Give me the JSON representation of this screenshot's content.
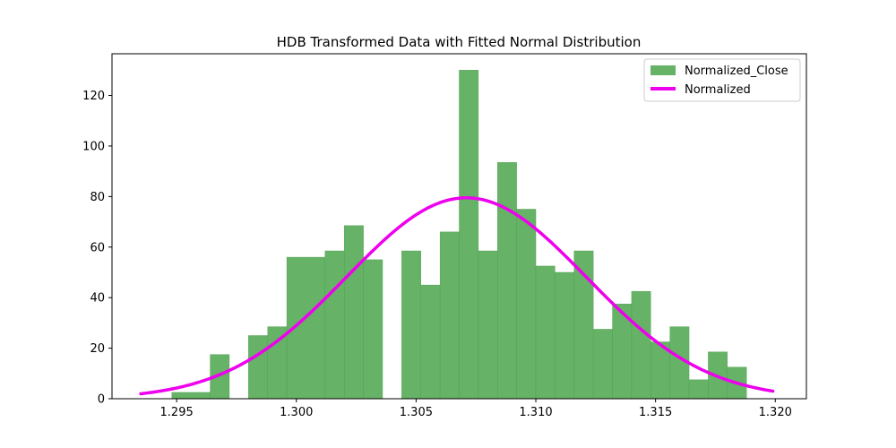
{
  "chart_data": {
    "type": "bar",
    "title": "HDB Transformed Data with Fitted Normal Distribution",
    "xlabel": "",
    "ylabel": "",
    "xlim": [
      1.2923,
      1.3213
    ],
    "ylim": [
      0,
      136.5
    ],
    "x_ticks": [
      "1.295",
      "1.300",
      "1.305",
      "1.310",
      "1.315",
      "1.320"
    ],
    "x_tick_values": [
      1.295,
      1.3,
      1.305,
      1.31,
      1.315,
      1.32
    ],
    "y_ticks": [
      "0",
      "20",
      "40",
      "60",
      "80",
      "100",
      "120"
    ],
    "y_tick_values": [
      0,
      20,
      40,
      60,
      80,
      100,
      120
    ],
    "grid": false,
    "legend_position": "top-right",
    "histogram": {
      "name": "Normalized_Close",
      "color": "#66b266",
      "bins": [
        {
          "x0": 1.2948,
          "x1": 1.2964,
          "count": 2.5
        },
        {
          "x0": 1.2964,
          "x1": 1.2972,
          "count": 17.5
        },
        {
          "x0": 1.298,
          "x1": 1.2988,
          "count": 25
        },
        {
          "x0": 1.2988,
          "x1": 1.2996,
          "count": 28.5
        },
        {
          "x0": 1.2996,
          "x1": 1.3012,
          "count": 56
        },
        {
          "x0": 1.3012,
          "x1": 1.302,
          "count": 58.5
        },
        {
          "x0": 1.302,
          "x1": 1.3028,
          "count": 68.5
        },
        {
          "x0": 1.3028,
          "x1": 1.3036,
          "count": 55
        },
        {
          "x0": 1.3044,
          "x1": 1.3052,
          "count": 58.5
        },
        {
          "x0": 1.3052,
          "x1": 1.306,
          "count": 45
        },
        {
          "x0": 1.306,
          "x1": 1.3068,
          "count": 66
        },
        {
          "x0": 1.3068,
          "x1": 1.3076,
          "count": 130
        },
        {
          "x0": 1.3076,
          "x1": 1.3084,
          "count": 58.5
        },
        {
          "x0": 1.3084,
          "x1": 1.3092,
          "count": 93.5
        },
        {
          "x0": 1.3092,
          "x1": 1.31,
          "count": 75
        },
        {
          "x0": 1.31,
          "x1": 1.3108,
          "count": 52.5
        },
        {
          "x0": 1.3108,
          "x1": 1.3116,
          "count": 50
        },
        {
          "x0": 1.3116,
          "x1": 1.3124,
          "count": 58.5
        },
        {
          "x0": 1.3124,
          "x1": 1.3132,
          "count": 27.5
        },
        {
          "x0": 1.3132,
          "x1": 1.314,
          "count": 37.5
        },
        {
          "x0": 1.314,
          "x1": 1.3148,
          "count": 42.5
        },
        {
          "x0": 1.3148,
          "x1": 1.3156,
          "count": 22.5
        },
        {
          "x0": 1.3156,
          "x1": 1.3164,
          "count": 28.5
        },
        {
          "x0": 1.3164,
          "x1": 1.3172,
          "count": 7.5
        },
        {
          "x0": 1.3172,
          "x1": 1.318,
          "count": 18.5
        },
        {
          "x0": 1.318,
          "x1": 1.3188,
          "count": 12.5
        }
      ]
    },
    "fitted_curve": {
      "name": "Normalized",
      "color": "#ee00ee",
      "mean": 1.3071,
      "std": 0.005,
      "peak": 79.5,
      "x_start": 1.2935,
      "x_end": 1.3199
    },
    "legend": [
      {
        "label": "Normalized_Close",
        "kind": "patch",
        "color": "#66b266"
      },
      {
        "label": "Normalized",
        "kind": "line",
        "color": "#ee00ee"
      }
    ]
  }
}
